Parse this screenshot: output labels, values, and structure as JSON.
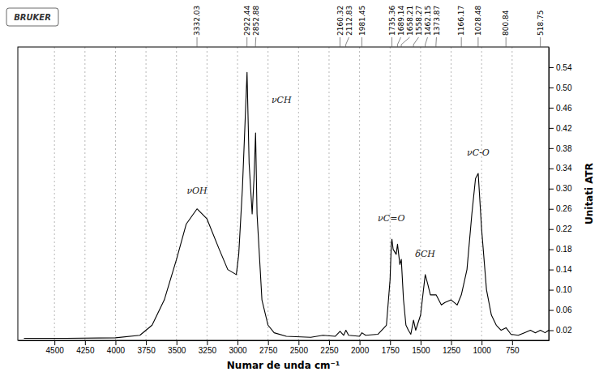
{
  "chart_data": {
    "type": "line",
    "x_label": "Numar de unda cm⁻¹",
    "y_label": "Unitati ATR",
    "logo": "BRUKER",
    "color": "#000000",
    "grid": "x",
    "xlim": [
      4800,
      450
    ],
    "ylim": [
      0,
      0.58
    ],
    "xticks": [
      4500,
      4250,
      4000,
      3750,
      3500,
      3250,
      3000,
      2750,
      2500,
      2250,
      2000,
      1750,
      1500,
      1250,
      1000,
      750
    ],
    "yticks": [
      0.02,
      0.06,
      {
        "value": 0.1,
        "label": "0.10"
      },
      0.14,
      0.18,
      0.22,
      0.26,
      {
        "value": 0.3,
        "label": "0.30"
      },
      0.34,
      0.38,
      0.42,
      0.46,
      {
        "value": 0.5,
        "label": "0.50"
      },
      0.54
    ],
    "x": [
      4750,
      4400,
      4000,
      3800,
      3700,
      3600,
      3500,
      3420,
      3332,
      3250,
      3150,
      3080,
      3010,
      2990,
      2960,
      2940,
      2922,
      2905,
      2880,
      2865,
      2852,
      2840,
      2800,
      2750,
      2700,
      2600,
      2400,
      2300,
      2200,
      2160,
      2130,
      2112,
      2090,
      2000,
      1981,
      1950,
      1850,
      1780,
      1750,
      1740,
      1735,
      1725,
      1700,
      1689,
      1670,
      1658,
      1640,
      1620,
      1600,
      1580,
      1558,
      1540,
      1500,
      1462,
      1440,
      1420,
      1373,
      1330,
      1300,
      1250,
      1200,
      1166,
      1120,
      1080,
      1050,
      1028,
      1000,
      960,
      920,
      880,
      840,
      800,
      760,
      700,
      650,
      600,
      560,
      518,
      480,
      450
    ],
    "values": [
      0.004,
      0.004,
      0.005,
      0.01,
      0.03,
      0.08,
      0.16,
      0.23,
      0.26,
      0.24,
      0.18,
      0.14,
      0.13,
      0.17,
      0.3,
      0.42,
      0.53,
      0.35,
      0.25,
      0.32,
      0.41,
      0.25,
      0.08,
      0.03,
      0.015,
      0.008,
      0.006,
      0.01,
      0.008,
      0.018,
      0.01,
      0.02,
      0.01,
      0.008,
      0.015,
      0.01,
      0.012,
      0.03,
      0.12,
      0.19,
      0.2,
      0.18,
      0.17,
      0.19,
      0.15,
      0.16,
      0.08,
      0.03,
      0.02,
      0.012,
      0.04,
      0.02,
      0.05,
      0.13,
      0.11,
      0.09,
      0.09,
      0.07,
      0.075,
      0.08,
      0.07,
      0.09,
      0.14,
      0.25,
      0.32,
      0.33,
      0.22,
      0.1,
      0.05,
      0.03,
      0.02,
      0.025,
      0.012,
      0.01,
      0.015,
      0.02,
      0.015,
      0.02,
      0.015,
      0.02
    ],
    "peaks": [
      3332.03,
      2922.44,
      2852.88,
      2160.32,
      2112.83,
      1981.45,
      1735.36,
      1689.14,
      1658.21,
      1558.27,
      1462.15,
      1373.87,
      1166.17,
      1028.48,
      800.84,
      518.75
    ],
    "annotations": [
      {
        "x": 3332,
        "y": 0.29,
        "text": "νOH"
      },
      {
        "x": 2640,
        "y": 0.47,
        "text": "νCH"
      },
      {
        "x": 1740,
        "y": 0.235,
        "text": "νC=O"
      },
      {
        "x": 1462,
        "y": 0.165,
        "text": "δCH"
      },
      {
        "x": 1028,
        "y": 0.365,
        "text": "νC-O"
      }
    ]
  }
}
